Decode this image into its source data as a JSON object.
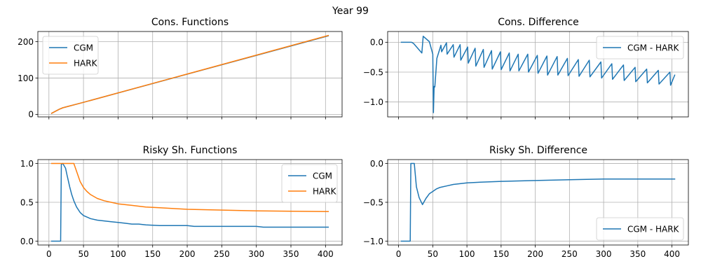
{
  "figure": {
    "suptitle": "Year 99"
  },
  "colors": {
    "blue": "#1f77b4",
    "orange": "#ff7f0e"
  },
  "chart_data": [
    {
      "type": "line",
      "title": "Cons. Functions",
      "xlim": [
        -16,
        424
      ],
      "ylim": [
        -7,
        228
      ],
      "yticks": [
        0,
        100,
        200
      ],
      "ytick_labels": [
        "0",
        "100",
        "200"
      ],
      "xticks": [
        0,
        50,
        100,
        150,
        200,
        250,
        300,
        350,
        400
      ],
      "xtick_labels": [],
      "grid": true,
      "legend": "upper-left",
      "series": [
        {
          "name": "CGM",
          "color": "#1f77b4",
          "x": [
            4,
            10,
            15,
            20,
            30,
            40,
            50,
            404
          ],
          "y": [
            3,
            9,
            14,
            18,
            23,
            28,
            33,
            216
          ]
        },
        {
          "name": "HARK",
          "color": "#ff7f0e",
          "x": [
            4,
            10,
            15,
            20,
            30,
            40,
            50,
            404
          ],
          "y": [
            3,
            9,
            14,
            18,
            23,
            28,
            33,
            217
          ]
        }
      ]
    },
    {
      "type": "line",
      "title": "Cons. Difference",
      "xlim": [
        -16,
        424
      ],
      "ylim": [
        -1.25,
        0.18
      ],
      "yticks": [
        0,
        -0.5,
        -1
      ],
      "ytick_labels": [
        "0.0",
        "−0.5",
        "−1.0"
      ],
      "xticks": [
        0,
        50,
        100,
        150,
        200,
        250,
        300,
        350,
        400
      ],
      "xtick_labels": [],
      "grid": true,
      "legend": "upper-right",
      "series": [
        {
          "name": "CGM - HARK",
          "color": "#1f77b4",
          "x": [
            4,
            12,
            19,
            22,
            34,
            36,
            45,
            50,
            51,
            52,
            53,
            56,
            62,
            63,
            70,
            71,
            80,
            81,
            90,
            91,
            101,
            102,
            112,
            113,
            124,
            125,
            136,
            137,
            149,
            150,
            162,
            163,
            175,
            176,
            189,
            190,
            203,
            204,
            217,
            218,
            232,
            233,
            247,
            248,
            263,
            264,
            279,
            280,
            296,
            297,
            312,
            313,
            329,
            330,
            346,
            347,
            363,
            364,
            380,
            381,
            397,
            398,
            404
          ],
          "y": [
            0,
            0,
            0,
            -0.02,
            -0.18,
            0.1,
            0.01,
            -0.2,
            -1.18,
            -0.74,
            -0.75,
            -0.27,
            -0.05,
            -0.16,
            -0.01,
            -0.2,
            -0.04,
            -0.25,
            -0.04,
            -0.3,
            -0.08,
            -0.35,
            -0.1,
            -0.4,
            -0.12,
            -0.42,
            -0.14,
            -0.45,
            -0.16,
            -0.46,
            -0.18,
            -0.48,
            -0.2,
            -0.48,
            -0.2,
            -0.5,
            -0.22,
            -0.52,
            -0.23,
            -0.55,
            -0.24,
            -0.55,
            -0.27,
            -0.56,
            -0.29,
            -0.57,
            -0.3,
            -0.58,
            -0.33,
            -0.6,
            -0.36,
            -0.62,
            -0.38,
            -0.64,
            -0.42,
            -0.66,
            -0.45,
            -0.68,
            -0.47,
            -0.7,
            -0.5,
            -0.72,
            -0.55
          ]
        }
      ]
    },
    {
      "type": "line",
      "title": "Risky Sh. Functions",
      "xlim": [
        -16,
        424
      ],
      "ylim": [
        -0.05,
        1.05
      ],
      "yticks": [
        0,
        0.5,
        1
      ],
      "ytick_labels": [
        "0.0",
        "0.5",
        "1.0"
      ],
      "xticks": [
        0,
        50,
        100,
        150,
        200,
        250,
        300,
        350,
        400
      ],
      "xtick_labels": [
        "0",
        "50",
        "100",
        "150",
        "200",
        "250",
        "300",
        "350",
        "400"
      ],
      "grid": true,
      "legend": "upper-right",
      "series": [
        {
          "name": "CGM",
          "color": "#1f77b4",
          "x": [
            4,
            17,
            18,
            20,
            24,
            26,
            28,
            30,
            33,
            36,
            40,
            45,
            50,
            55,
            60,
            70,
            80,
            90,
            100,
            110,
            120,
            130,
            140,
            160,
            180,
            200,
            210,
            250,
            300,
            310,
            350,
            404
          ],
          "y": [
            0,
            0,
            0.99,
            1.0,
            0.94,
            0.86,
            0.78,
            0.7,
            0.6,
            0.52,
            0.44,
            0.37,
            0.33,
            0.31,
            0.29,
            0.27,
            0.26,
            0.25,
            0.24,
            0.23,
            0.22,
            0.22,
            0.21,
            0.2,
            0.2,
            0.2,
            0.19,
            0.19,
            0.19,
            0.18,
            0.18,
            0.18
          ]
        },
        {
          "name": "HARK",
          "color": "#ff7f0e",
          "x": [
            4,
            36,
            40,
            45,
            50,
            55,
            60,
            70,
            80,
            90,
            100,
            120,
            140,
            160,
            180,
            200,
            250,
            300,
            350,
            404
          ],
          "y": [
            1.0,
            1.0,
            0.9,
            0.77,
            0.69,
            0.64,
            0.6,
            0.55,
            0.52,
            0.5,
            0.48,
            0.46,
            0.44,
            0.43,
            0.42,
            0.41,
            0.4,
            0.39,
            0.385,
            0.38
          ]
        }
      ]
    },
    {
      "type": "line",
      "title": "Risky Sh. Difference",
      "xlim": [
        -16,
        424
      ],
      "ylim": [
        -1.05,
        0.05
      ],
      "yticks": [
        0,
        -0.5,
        -1
      ],
      "ytick_labels": [
        "0.0",
        "−0.5",
        "−1.0"
      ],
      "xticks": [
        0,
        50,
        100,
        150,
        200,
        250,
        300,
        350,
        400
      ],
      "xtick_labels": [
        "0",
        "50",
        "100",
        "150",
        "200",
        "250",
        "300",
        "350",
        "400"
      ],
      "grid": true,
      "legend": "lower-right",
      "series": [
        {
          "name": "CGM - HARK",
          "color": "#1f77b4",
          "x": [
            4,
            17,
            18,
            23,
            26,
            30,
            35,
            40,
            45,
            50,
            55,
            60,
            70,
            80,
            90,
            100,
            120,
            150,
            200,
            250,
            300,
            404
          ],
          "y": [
            -1.0,
            -1.0,
            0.0,
            0.0,
            -0.3,
            -0.44,
            -0.53,
            -0.45,
            -0.39,
            -0.36,
            -0.33,
            -0.31,
            -0.29,
            -0.27,
            -0.26,
            -0.25,
            -0.24,
            -0.23,
            -0.22,
            -0.21,
            -0.2,
            -0.2
          ]
        }
      ]
    }
  ]
}
